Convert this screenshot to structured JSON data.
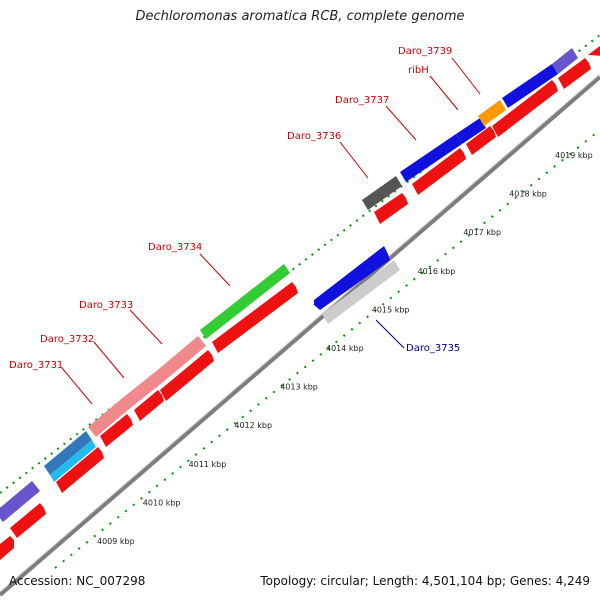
{
  "title": "Dechloromonas aromatica RCB, complete genome",
  "footer": {
    "accession": "Accession: NC_007298",
    "topology": "Topology: circular; Length: 4,501,104 bp; Genes: 4,249"
  },
  "colors": {
    "cds_forward": "#ff0000",
    "cds_reverse": "#0000ee",
    "backbone": "#888888",
    "label_red": "#cc0000",
    "label_blue": "#000099",
    "tick_green": "#006600"
  },
  "scale_labels": [
    "4009 kbp",
    "4010 kbp",
    "4011 kbp",
    "4012 kbp",
    "4013 kbp",
    "4014 kbp",
    "4015 kbp",
    "4016 kbp",
    "4017 kbp",
    "4018 kbp",
    "4019 kbp"
  ],
  "gene_labels": {
    "daro_3731": "Daro_3731",
    "daro_3732": "Daro_3732",
    "daro_3733": "Daro_3733",
    "daro_3734": "Daro_3734",
    "daro_3736": "Daro_3736",
    "daro_3737": "Daro_3737",
    "ribh": "ribH",
    "daro_3739": "Daro_3739",
    "daro_3735": "Daro_3735"
  }
}
